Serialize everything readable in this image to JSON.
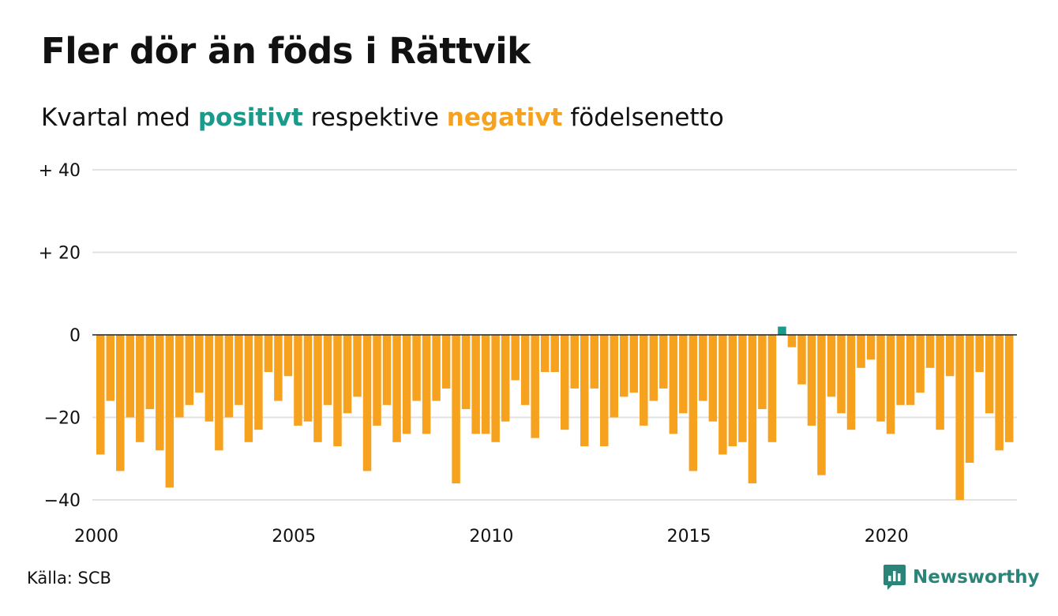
{
  "title": "Fler dör än föds i Rättvik",
  "subtitle": {
    "prefix": "Kvartal med ",
    "positive_word": "positivt",
    "middle": " respektive ",
    "negative_word": "negativt",
    "suffix": " födelsenetto"
  },
  "colors": {
    "positive": "#1a9a8a",
    "negative": "#f7a21e",
    "grid": "#e2e2e2",
    "zero_line": "#222222",
    "brand": "#2a8578"
  },
  "source": "Källa: SCB",
  "brand": {
    "name": "Newsworthy",
    "icon": "newsworthy-logo-icon"
  },
  "chart_data": {
    "type": "bar",
    "title": "Fler dör än föds i Rättvik",
    "subtitle": "Kvartal med positivt respektive negativt födelsenetto",
    "y_ticks": [
      {
        "value": 40,
        "label": "+ 40"
      },
      {
        "value": 20,
        "label": "+ 20"
      },
      {
        "value": 0,
        "label": "0"
      },
      {
        "value": -20,
        "label": "−20"
      },
      {
        "value": -40,
        "label": "−40"
      }
    ],
    "x_ticks": [
      "2000",
      "2005",
      "2010",
      "2015",
      "2020"
    ],
    "ylim": [
      -40,
      40
    ],
    "grid": true,
    "start_quarter": "2000-Q1",
    "values": [
      -29,
      -16,
      -33,
      -20,
      -26,
      -18,
      -28,
      -37,
      -20,
      -17,
      -14,
      -21,
      -28,
      -20,
      -17,
      -26,
      -23,
      -9,
      -16,
      -10,
      -22,
      -21,
      -26,
      -17,
      -27,
      -19,
      -15,
      -33,
      -22,
      -17,
      -26,
      -24,
      -16,
      -24,
      -16,
      -13,
      -36,
      -18,
      -24,
      -24,
      -26,
      -21,
      -11,
      -17,
      -25,
      -9,
      -9,
      -23,
      -13,
      -27,
      -13,
      -27,
      -20,
      -15,
      -14,
      -22,
      -16,
      -13,
      -24,
      -19,
      -33,
      -16,
      -21,
      -29,
      -27,
      -26,
      -36,
      -18,
      -26,
      2,
      -3,
      -12,
      -22,
      -34,
      -15,
      -19,
      -23,
      -8,
      -6,
      -21,
      -24,
      -17,
      -17,
      -14,
      -8,
      -23,
      -10,
      -40,
      -31,
      -9,
      -19,
      -28,
      -26
    ]
  }
}
